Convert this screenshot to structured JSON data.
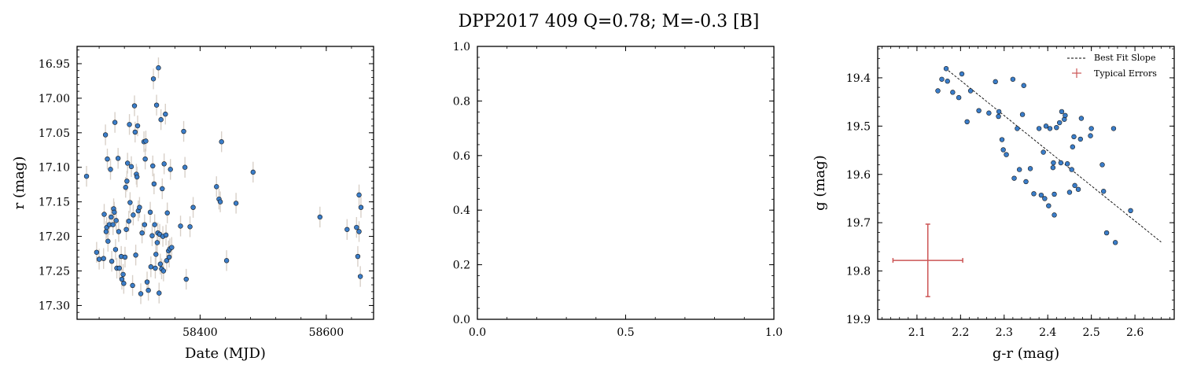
{
  "figure": {
    "suptitle": "DPP2017 409  Q=0.78; M=-0.3 [B]",
    "colors": {
      "point": "#3a7dc9",
      "point_edge": "#1a1a1a",
      "errorbar": "#d8d0c8",
      "typical_error": "#cc5555",
      "fit_line": "#000000"
    }
  },
  "chart_data": [
    {
      "type": "scatter",
      "xlabel": "Date (MJD)",
      "ylabel": "r (mag)",
      "xlim": [
        58205,
        58675
      ],
      "ylim": [
        17.32,
        16.925
      ],
      "y_inverted": true,
      "xticks": [
        58400,
        58600
      ],
      "xtick_labels": [
        "58400",
        "58600"
      ],
      "yticks": [
        16.95,
        17.0,
        17.05,
        17.1,
        17.15,
        17.2,
        17.25,
        17.3
      ],
      "ytick_labels": [
        "16.95",
        "17.00",
        "17.05",
        "17.10",
        "17.15",
        "17.20",
        "17.25",
        "17.30"
      ],
      "y_error": 0.015,
      "points": [
        [
          58220,
          17.113
        ],
        [
          58236,
          17.223
        ],
        [
          58240,
          17.233
        ],
        [
          58247,
          17.232
        ],
        [
          58248,
          17.168
        ],
        [
          58250,
          17.053
        ],
        [
          58251,
          17.193
        ],
        [
          58252,
          17.187
        ],
        [
          58253,
          17.088
        ],
        [
          58254,
          17.207
        ],
        [
          58256,
          17.183
        ],
        [
          58258,
          17.103
        ],
        [
          58259,
          17.172
        ],
        [
          58260,
          17.236
        ],
        [
          58262,
          17.183
        ],
        [
          58263,
          17.16
        ],
        [
          58264,
          17.165
        ],
        [
          58265,
          17.035
        ],
        [
          58266,
          17.219
        ],
        [
          58267,
          17.177
        ],
        [
          58268,
          17.246
        ],
        [
          58270,
          17.087
        ],
        [
          58271,
          17.193
        ],
        [
          58272,
          17.246
        ],
        [
          58275,
          17.229
        ],
        [
          58276,
          17.262
        ],
        [
          58278,
          17.255
        ],
        [
          58279,
          17.268
        ],
        [
          58281,
          17.23
        ],
        [
          58282,
          17.129
        ],
        [
          58283,
          17.19
        ],
        [
          58284,
          17.12
        ],
        [
          58285,
          17.094
        ],
        [
          58287,
          17.178
        ],
        [
          58288,
          17.038
        ],
        [
          58289,
          17.151
        ],
        [
          58291,
          17.099
        ],
        [
          58293,
          17.271
        ],
        [
          58294,
          17.169
        ],
        [
          58296,
          17.011
        ],
        [
          58297,
          17.049
        ],
        [
          58298,
          17.227
        ],
        [
          58299,
          17.11
        ],
        [
          58300,
          17.114
        ],
        [
          58301,
          17.04
        ],
        [
          58302,
          17.163
        ],
        [
          58304,
          17.158
        ],
        [
          58306,
          17.283
        ],
        [
          58308,
          17.195
        ],
        [
          58311,
          17.063
        ],
        [
          58312,
          17.183
        ],
        [
          58313,
          17.088
        ],
        [
          58314,
          17.062
        ],
        [
          58316,
          17.266
        ],
        [
          58318,
          17.278
        ],
        [
          58321,
          17.165
        ],
        [
          58322,
          17.244
        ],
        [
          58324,
          17.199
        ],
        [
          58325,
          17.098
        ],
        [
          58326,
          16.972
        ],
        [
          58327,
          17.124
        ],
        [
          58328,
          17.183
        ],
        [
          58329,
          17.246
        ],
        [
          58330,
          17.226
        ],
        [
          58331,
          17.01
        ],
        [
          58332,
          17.209
        ],
        [
          58333,
          17.195
        ],
        [
          58334,
          16.956
        ],
        [
          58335,
          17.282
        ],
        [
          58336,
          17.197
        ],
        [
          58337,
          17.24
        ],
        [
          58338,
          17.031
        ],
        [
          58339,
          17.247
        ],
        [
          58340,
          17.131
        ],
        [
          58341,
          17.2
        ],
        [
          58342,
          17.25
        ],
        [
          58343,
          17.095
        ],
        [
          58345,
          17.023
        ],
        [
          58346,
          17.198
        ],
        [
          58347,
          17.235
        ],
        [
          58348,
          17.166
        ],
        [
          58350,
          17.221
        ],
        [
          58351,
          17.23
        ],
        [
          58352,
          17.218
        ],
        [
          58353,
          17.103
        ],
        [
          58355,
          17.216
        ],
        [
          58369,
          17.185
        ],
        [
          58374,
          17.048
        ],
        [
          58376,
          17.1
        ],
        [
          58378,
          17.262
        ],
        [
          58384,
          17.186
        ],
        [
          58389,
          17.158
        ],
        [
          58426,
          17.128
        ],
        [
          58430,
          17.146
        ],
        [
          58432,
          17.15
        ],
        [
          58434,
          17.063
        ],
        [
          58442,
          17.235
        ],
        [
          58457,
          17.152
        ],
        [
          58484,
          17.107
        ],
        [
          58590,
          17.172
        ],
        [
          58633,
          17.19
        ],
        [
          58648,
          17.187
        ],
        [
          58650,
          17.229
        ],
        [
          58652,
          17.193
        ],
        [
          58652,
          17.14
        ],
        [
          58654,
          17.258
        ],
        [
          58655,
          17.158
        ]
      ]
    },
    {
      "type": "scatter",
      "xlim": [
        0,
        1
      ],
      "ylim": [
        0,
        1
      ],
      "xticks": [
        0,
        0.5,
        1
      ],
      "xtick_labels": [
        "0.0",
        "0.5",
        "1.0"
      ],
      "yticks": [
        0,
        0.2,
        0.4,
        0.6,
        0.8,
        1
      ],
      "ytick_labels": [
        "0.0",
        "0.2",
        "0.4",
        "0.6",
        "0.8",
        "1.0"
      ],
      "points": []
    },
    {
      "type": "scatter",
      "xlabel": "g-r (mag)",
      "ylabel": "g (mag)",
      "xlim": [
        2.01,
        2.69
      ],
      "ylim": [
        19.9,
        19.335
      ],
      "y_inverted": true,
      "xticks": [
        2.1,
        2.2,
        2.3,
        2.4,
        2.5,
        2.6
      ],
      "xtick_labels": [
        "2.1",
        "2.2",
        "2.3",
        "2.4",
        "2.5",
        "2.6"
      ],
      "yticks": [
        19.4,
        19.5,
        19.6,
        19.7,
        19.8,
        19.9
      ],
      "ytick_labels": [
        "19.4",
        "19.5",
        "19.6",
        "19.7",
        "19.8",
        "19.9"
      ],
      "legend": [
        "Best Fit Slope",
        "Typical Errors"
      ],
      "legend_loc": "upper right",
      "best_fit": {
        "x": [
          2.165,
          2.66
        ],
        "y": [
          19.38,
          19.74
        ]
      },
      "typical_error": {
        "x": 2.125,
        "y": 19.778,
        "xerr": 0.08,
        "yerr": 0.075
      },
      "points": [
        [
          2.148,
          19.427
        ],
        [
          2.157,
          19.403
        ],
        [
          2.167,
          19.381
        ],
        [
          2.17,
          19.407
        ],
        [
          2.182,
          19.43
        ],
        [
          2.196,
          19.441
        ],
        [
          2.203,
          19.392
        ],
        [
          2.215,
          19.491
        ],
        [
          2.223,
          19.427
        ],
        [
          2.242,
          19.468
        ],
        [
          2.265,
          19.473
        ],
        [
          2.28,
          19.408
        ],
        [
          2.287,
          19.48
        ],
        [
          2.288,
          19.47
        ],
        [
          2.295,
          19.528
        ],
        [
          2.298,
          19.549
        ],
        [
          2.305,
          19.559
        ],
        [
          2.32,
          19.403
        ],
        [
          2.323,
          19.608
        ],
        [
          2.33,
          19.505
        ],
        [
          2.335,
          19.59
        ],
        [
          2.342,
          19.476
        ],
        [
          2.345,
          19.416
        ],
        [
          2.35,
          19.615
        ],
        [
          2.36,
          19.588
        ],
        [
          2.368,
          19.64
        ],
        [
          2.38,
          19.505
        ],
        [
          2.385,
          19.643
        ],
        [
          2.39,
          19.554
        ],
        [
          2.393,
          19.65
        ],
        [
          2.396,
          19.5
        ],
        [
          2.402,
          19.665
        ],
        [
          2.405,
          19.505
        ],
        [
          2.412,
          19.586
        ],
        [
          2.413,
          19.576
        ],
        [
          2.415,
          19.684
        ],
        [
          2.415,
          19.641
        ],
        [
          2.42,
          19.503
        ],
        [
          2.427,
          19.493
        ],
        [
          2.43,
          19.576
        ],
        [
          2.432,
          19.47
        ],
        [
          2.438,
          19.486
        ],
        [
          2.44,
          19.478
        ],
        [
          2.445,
          19.578
        ],
        [
          2.45,
          19.637
        ],
        [
          2.455,
          19.59
        ],
        [
          2.457,
          19.543
        ],
        [
          2.46,
          19.522
        ],
        [
          2.462,
          19.623
        ],
        [
          2.47,
          19.631
        ],
        [
          2.475,
          19.527
        ],
        [
          2.477,
          19.484
        ],
        [
          2.498,
          19.52
        ],
        [
          2.5,
          19.505
        ],
        [
          2.525,
          19.58
        ],
        [
          2.528,
          19.635
        ],
        [
          2.535,
          19.721
        ],
        [
          2.551,
          19.505
        ],
        [
          2.555,
          19.741
        ],
        [
          2.59,
          19.675
        ]
      ]
    }
  ]
}
